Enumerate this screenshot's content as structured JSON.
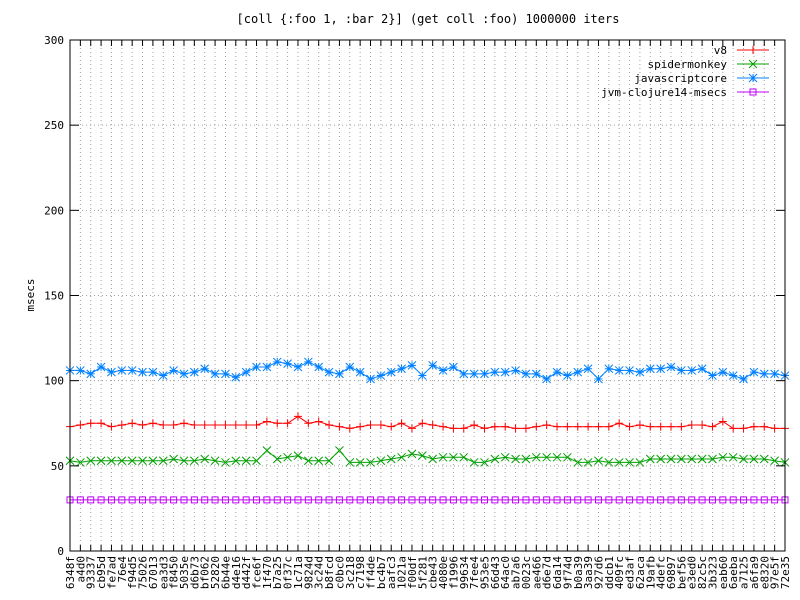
{
  "chart_data": {
    "type": "line",
    "title": "[coll {:foo 1, :bar 2}] (get coll :foo) 1000000 iters",
    "ylabel": "msecs",
    "xlabel": "",
    "ylim": [
      0,
      300
    ],
    "y_ticks": [
      0,
      50,
      100,
      150,
      200,
      250,
      300
    ],
    "grid": true,
    "legend_position": "top-right",
    "categories": [
      "6348f",
      "a4d0",
      "93337",
      "cb95d",
      "fe7ad",
      "76e4",
      "f94d5",
      "75026",
      "67013",
      "ea3d3",
      "f8450",
      "5035e",
      "d6b73",
      "bf062",
      "52820",
      "6b44e",
      "d4e16",
      "d442f",
      "fce6f",
      "1f470",
      "b7a25",
      "0f37c",
      "1c71a",
      "9824d",
      "3c24d",
      "b8fcd",
      "c0bc0",
      "3c218",
      "c7198",
      "ff4de",
      "bc4b7",
      "aafc3",
      "1021a",
      "f00df",
      "5f281",
      "cbe43",
      "4080e",
      "f1996",
      "99634",
      "7fee4",
      "953e5",
      "66d43",
      "64ac0",
      "ab7a6",
      "0023c",
      "ae466",
      "d6e7d",
      "6da14",
      "9f74d",
      "b0a39",
      "3aa39",
      "927d6",
      "ddcb1",
      "409fc",
      "ed3af",
      "62aca",
      "19afb",
      "4defc",
      "69897",
      "bef56",
      "e3ed0",
      "82c5c",
      "3b323",
      "eab60",
      "6aeba",
      "a7125",
      "a6fa9",
      "e8320",
      "97e5f",
      "72e35"
    ],
    "series": [
      {
        "name": "v8",
        "color": "#ff0000",
        "marker": "plus",
        "values": [
          73,
          74,
          75,
          75,
          73,
          74,
          75,
          74,
          75,
          74,
          74,
          75,
          74,
          74,
          74,
          74,
          74,
          74,
          74,
          76,
          75,
          75,
          79,
          75,
          76,
          74,
          73,
          72,
          73,
          74,
          74,
          73,
          75,
          72,
          75,
          74,
          73,
          72,
          72,
          74,
          72,
          73,
          73,
          72,
          72,
          73,
          74,
          73,
          73,
          73,
          73,
          73,
          73,
          75,
          73,
          74,
          73,
          73,
          73,
          73,
          74,
          74,
          73,
          76,
          72,
          72,
          73,
          73,
          72,
          72
        ]
      },
      {
        "name": "spidermonkey",
        "color": "#00a000",
        "marker": "x",
        "values": [
          53,
          52,
          53,
          53,
          53,
          53,
          53,
          53,
          53,
          53,
          54,
          53,
          53,
          54,
          53,
          52,
          53,
          53,
          53,
          59,
          54,
          55,
          56,
          53,
          53,
          53,
          59,
          52,
          52,
          52,
          53,
          54,
          55,
          57,
          56,
          54,
          55,
          55,
          55,
          52,
          52,
          54,
          55,
          54,
          54,
          55,
          55,
          55,
          55,
          52,
          52,
          53,
          52,
          52,
          52,
          52,
          54,
          54,
          54,
          54,
          54,
          54,
          54,
          55,
          55,
          54,
          54,
          54,
          53,
          52
        ]
      },
      {
        "name": "javascriptcore",
        "color": "#0080ff",
        "marker": "star",
        "values": [
          106,
          106,
          104,
          108,
          105,
          106,
          106,
          105,
          105,
          103,
          106,
          104,
          105,
          107,
          104,
          104,
          102,
          105,
          108,
          108,
          111,
          110,
          108,
          111,
          108,
          105,
          104,
          108,
          105,
          101,
          103,
          105,
          107,
          109,
          103,
          109,
          106,
          108,
          104,
          104,
          104,
          105,
          105,
          106,
          104,
          104,
          101,
          105,
          103,
          105,
          107,
          101,
          107,
          106,
          106,
          105,
          107,
          107,
          108,
          106,
          106,
          107,
          103,
          105,
          103,
          101,
          105,
          104,
          104,
          103
        ]
      },
      {
        "name": "jvm-clojure14-msecs",
        "color": "#c000ff",
        "marker": "square",
        "values": [
          30,
          30,
          30,
          30,
          30,
          30,
          30,
          30,
          30,
          30,
          30,
          30,
          30,
          30,
          30,
          30,
          30,
          30,
          30,
          30,
          30,
          30,
          30,
          30,
          30,
          30,
          30,
          30,
          30,
          30,
          30,
          30,
          30,
          30,
          30,
          30,
          30,
          30,
          30,
          30,
          30,
          30,
          30,
          30,
          30,
          30,
          30,
          30,
          30,
          30,
          30,
          30,
          30,
          30,
          30,
          30,
          30,
          30,
          30,
          30,
          30,
          30,
          30,
          30,
          30,
          30,
          30,
          30,
          30,
          30
        ]
      }
    ]
  }
}
